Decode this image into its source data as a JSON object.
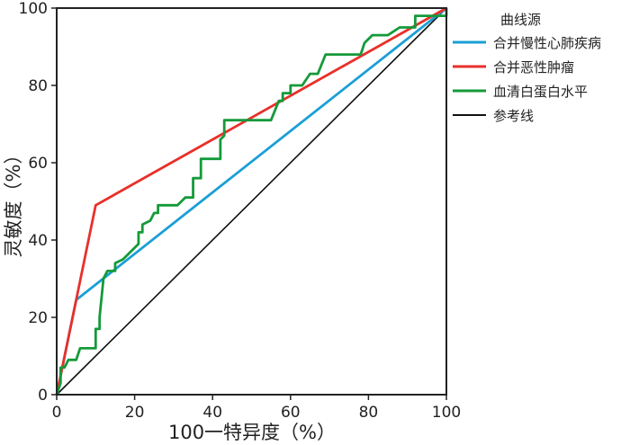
{
  "chart_data": {
    "type": "line",
    "title": "",
    "xlabel": "100一特异度（%）",
    "ylabel": "灵敏度（%）",
    "xlim": [
      0,
      100
    ],
    "ylim": [
      0,
      100
    ],
    "xticks": [
      0,
      20,
      40,
      60,
      80,
      100
    ],
    "yticks": [
      0,
      20,
      40,
      60,
      80,
      100
    ],
    "grid": false,
    "legend_title": "曲线源",
    "legend_position": "right",
    "series": [
      {
        "name": "合并慢性心肺疾病",
        "color": "#1a9fd6",
        "x": [
          0,
          5,
          100
        ],
        "y": [
          0,
          24.5,
          100
        ]
      },
      {
        "name": "合并恶性肿瘤",
        "color": "#e8302a",
        "x": [
          0,
          10,
          100
        ],
        "y": [
          0,
          49,
          100
        ]
      },
      {
        "name": "血清白蛋白水平",
        "color": "#159a3a",
        "x": [
          0,
          1,
          1,
          2,
          3,
          5,
          6,
          10,
          10,
          11,
          11,
          12,
          13,
          15,
          15,
          17,
          21,
          21,
          22,
          22,
          24,
          25,
          26,
          26,
          31,
          33,
          35,
          35,
          37,
          37,
          42,
          42,
          43,
          43,
          55,
          57,
          58,
          58,
          60,
          60,
          63,
          65,
          67,
          69,
          78,
          79,
          81,
          85,
          88,
          92,
          92,
          100,
          100
        ],
        "y": [
          0,
          3,
          7,
          7,
          9,
          9,
          12,
          12,
          17,
          17,
          20,
          30,
          32,
          32,
          34,
          35,
          39,
          42,
          42,
          44,
          45,
          47,
          47,
          49,
          49,
          51,
          51,
          56,
          56,
          61,
          61,
          66,
          67,
          71,
          71,
          76,
          76,
          78,
          78,
          80,
          80,
          83,
          83,
          88,
          88,
          91,
          93,
          93,
          95,
          95,
          98,
          98,
          100
        ]
      },
      {
        "name": "参考线",
        "color": "#111111",
        "x": [
          0,
          100
        ],
        "y": [
          0,
          100
        ]
      }
    ]
  }
}
